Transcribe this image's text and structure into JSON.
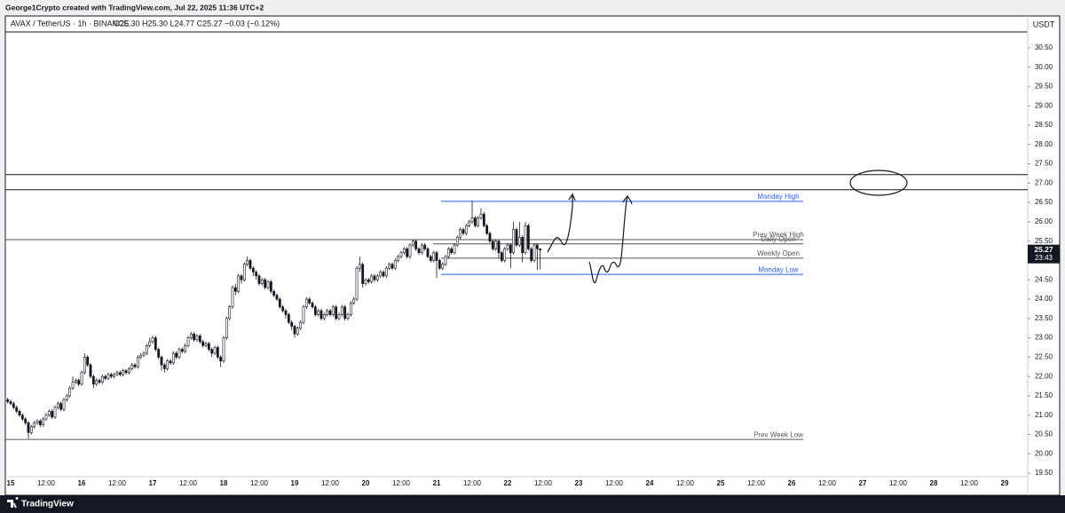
{
  "header": "George1Crypto created with TradingView.com, Jul 22, 2025 11:36 UTC+2",
  "footer": "TradingView",
  "chart_data": {
    "type": "candlestick",
    "symbol": "AVAX / TetherUS · 1h · BINANCE",
    "ohlc_header": "O25.30 H25.30 L24.77 C25.27 −0.03 (−0.12%)",
    "y_axis_label": "USDT",
    "ylim": [
      19.41,
      30.91
    ],
    "yticks": [
      {
        "value": 19.5,
        "label": "19.50"
      },
      {
        "value": 20,
        "label": "20.00"
      },
      {
        "value": 20.5,
        "label": "20.50"
      },
      {
        "value": 21,
        "label": "21.00"
      },
      {
        "value": 21.5,
        "label": "21.50"
      },
      {
        "value": 22,
        "label": "22.00"
      },
      {
        "value": 22.5,
        "label": "22.50"
      },
      {
        "value": 23,
        "label": "23.00"
      },
      {
        "value": 23.5,
        "label": "23.50"
      },
      {
        "value": 24,
        "label": "24.00"
      },
      {
        "value": 24.5,
        "label": "24.50"
      },
      {
        "value": 25,
        "label": "25.00"
      },
      {
        "value": 25.5,
        "label": "25.50"
      },
      {
        "value": 26,
        "label": "26.00"
      },
      {
        "value": 26.5,
        "label": "26.50"
      },
      {
        "value": 27,
        "label": "27.00"
      },
      {
        "value": 27.5,
        "label": "27.50"
      },
      {
        "value": 28,
        "label": "28.00"
      },
      {
        "value": 28.5,
        "label": "28.50"
      },
      {
        "value": 29,
        "label": "29.00"
      },
      {
        "value": 29.5,
        "label": "29.50"
      },
      {
        "value": 30,
        "label": "30.00"
      },
      {
        "value": 30.5,
        "label": "30.50"
      }
    ],
    "xticks": [
      "15",
      "12:00",
      "16",
      "12:00",
      "17",
      "12:00",
      "18",
      "12:00",
      "19",
      "12:00",
      "20",
      "12:00",
      "21",
      "12:00",
      "22",
      "12:00",
      "23",
      "12:00",
      "24",
      "12:00",
      "25",
      "12:00",
      "26",
      "12:00",
      "27",
      "12:00",
      "28",
      "12:00",
      "29"
    ],
    "up_color": "#ffffff",
    "down_color": "#131722",
    "last_price": 25.27,
    "countdown": "23:43",
    "lines": [
      {
        "value": 27.22,
        "color": "#131722"
      },
      {
        "value": 26.83,
        "color": "#131722"
      }
    ],
    "levels": [
      {
        "name": "Monday High",
        "value": 26.53,
        "color": "#2962ff"
      },
      {
        "name": "Prev Week High",
        "value": 25.54,
        "color": "#555555"
      },
      {
        "name": "Daily Open",
        "value": 25.43,
        "color": "#555555"
      },
      {
        "name": "Weekly Open",
        "value": 25.06,
        "color": "#555555"
      },
      {
        "name": "Monday Low",
        "value": 24.64,
        "color": "#2962ff"
      },
      {
        "name": "Prev Week Low",
        "value": 20.37,
        "color": "#555555"
      }
    ],
    "candles": [
      [
        21.4,
        21.45,
        21.3,
        21.35
      ],
      [
        21.35,
        21.4,
        21.25,
        21.3
      ],
      [
        21.3,
        21.35,
        21.15,
        21.2
      ],
      [
        21.2,
        21.25,
        21.05,
        21.1
      ],
      [
        21.1,
        21.15,
        20.95,
        21.0
      ],
      [
        21.0,
        21.05,
        20.85,
        20.9
      ],
      [
        20.9,
        20.95,
        20.75,
        20.8
      ],
      [
        20.8,
        20.85,
        20.4,
        20.55
      ],
      [
        20.55,
        20.75,
        20.5,
        20.7
      ],
      [
        20.7,
        20.85,
        20.65,
        20.8
      ],
      [
        20.8,
        20.9,
        20.75,
        20.85
      ],
      [
        20.85,
        20.9,
        20.7,
        20.75
      ],
      [
        20.75,
        20.95,
        20.7,
        20.9
      ],
      [
        20.9,
        21.05,
        20.85,
        21.0
      ],
      [
        21.0,
        21.15,
        20.95,
        21.1
      ],
      [
        21.1,
        21.15,
        20.9,
        20.95
      ],
      [
        20.95,
        21.25,
        20.9,
        21.2
      ],
      [
        21.2,
        21.35,
        21.15,
        21.3
      ],
      [
        21.3,
        21.35,
        21.1,
        21.15
      ],
      [
        21.15,
        21.45,
        21.1,
        21.4
      ],
      [
        21.4,
        21.55,
        21.35,
        21.5
      ],
      [
        21.5,
        21.75,
        21.45,
        21.7
      ],
      [
        21.7,
        22.0,
        21.65,
        21.85
      ],
      [
        21.85,
        21.95,
        21.8,
        21.9
      ],
      [
        21.9,
        21.95,
        21.75,
        21.8
      ],
      [
        21.8,
        22.15,
        21.75,
        22.1
      ],
      [
        22.1,
        22.6,
        22.05,
        22.5
      ],
      [
        22.5,
        22.55,
        22.25,
        22.3
      ],
      [
        22.3,
        22.35,
        21.95,
        22.0
      ],
      [
        22.0,
        22.05,
        21.7,
        21.8
      ],
      [
        21.8,
        21.95,
        21.75,
        21.9
      ],
      [
        21.9,
        21.95,
        21.8,
        21.85
      ],
      [
        21.85,
        22.05,
        21.8,
        22.0
      ],
      [
        22.0,
        22.05,
        21.9,
        21.95
      ],
      [
        21.95,
        22.1,
        21.9,
        22.05
      ],
      [
        22.05,
        22.1,
        21.95,
        22.0
      ],
      [
        22.0,
        22.1,
        21.95,
        22.05
      ],
      [
        22.05,
        22.15,
        22.0,
        22.1
      ],
      [
        22.1,
        22.15,
        22.0,
        22.05
      ],
      [
        22.05,
        22.2,
        22.0,
        22.15
      ],
      [
        22.15,
        22.2,
        22.05,
        22.1
      ],
      [
        22.1,
        22.25,
        22.05,
        22.2
      ],
      [
        22.2,
        22.35,
        22.15,
        22.3
      ],
      [
        22.3,
        22.35,
        22.2,
        22.25
      ],
      [
        22.25,
        22.55,
        22.2,
        22.5
      ],
      [
        22.5,
        22.6,
        22.45,
        22.55
      ],
      [
        22.55,
        22.65,
        22.5,
        22.6
      ],
      [
        22.6,
        22.85,
        22.55,
        22.8
      ],
      [
        22.8,
        23.0,
        22.75,
        22.9
      ],
      [
        22.9,
        23.05,
        22.85,
        23.0
      ],
      [
        23.0,
        23.05,
        22.65,
        22.7
      ],
      [
        22.7,
        22.75,
        22.45,
        22.5
      ],
      [
        22.5,
        22.55,
        22.15,
        22.3
      ],
      [
        22.3,
        22.35,
        22.1,
        22.2
      ],
      [
        22.2,
        22.45,
        22.15,
        22.4
      ],
      [
        22.4,
        22.45,
        22.3,
        22.35
      ],
      [
        22.35,
        22.65,
        22.3,
        22.6
      ],
      [
        22.6,
        22.65,
        22.45,
        22.5
      ],
      [
        22.5,
        22.75,
        22.45,
        22.7
      ],
      [
        22.7,
        22.75,
        22.6,
        22.65
      ],
      [
        22.65,
        22.85,
        22.6,
        22.8
      ],
      [
        22.8,
        23.05,
        22.75,
        23.0
      ],
      [
        23.0,
        23.15,
        22.95,
        23.1
      ],
      [
        23.1,
        23.15,
        22.9,
        22.95
      ],
      [
        22.95,
        23.1,
        22.9,
        23.05
      ],
      [
        23.05,
        23.1,
        22.85,
        22.9
      ],
      [
        22.9,
        22.95,
        22.75,
        22.8
      ],
      [
        22.8,
        22.9,
        22.75,
        22.85
      ],
      [
        22.85,
        22.9,
        22.65,
        22.7
      ],
      [
        22.7,
        22.75,
        22.5,
        22.6
      ],
      [
        22.6,
        22.8,
        22.55,
        22.75
      ],
      [
        22.75,
        22.8,
        22.45,
        22.5
      ],
      [
        22.5,
        22.55,
        22.25,
        22.4
      ],
      [
        22.4,
        23.05,
        22.35,
        23.0
      ],
      [
        23.0,
        23.55,
        22.95,
        23.5
      ],
      [
        23.5,
        23.85,
        23.45,
        23.8
      ],
      [
        23.8,
        24.35,
        23.75,
        24.3
      ],
      [
        24.3,
        24.4,
        24.1,
        24.2
      ],
      [
        24.2,
        24.65,
        24.15,
        24.6
      ],
      [
        24.6,
        24.65,
        24.4,
        24.5
      ],
      [
        24.5,
        24.95,
        24.45,
        24.9
      ],
      [
        24.9,
        25.1,
        24.85,
        25.0
      ],
      [
        25.0,
        25.05,
        24.75,
        24.8
      ],
      [
        24.8,
        24.85,
        24.6,
        24.7
      ],
      [
        24.7,
        24.75,
        24.5,
        24.6
      ],
      [
        24.6,
        24.65,
        24.35,
        24.4
      ],
      [
        24.4,
        24.55,
        24.35,
        24.5
      ],
      [
        24.5,
        24.55,
        24.25,
        24.3
      ],
      [
        24.3,
        24.5,
        24.25,
        24.45
      ],
      [
        24.45,
        24.5,
        24.15,
        24.2
      ],
      [
        24.2,
        24.25,
        24.05,
        24.1
      ],
      [
        24.1,
        24.15,
        23.95,
        24.0
      ],
      [
        24.0,
        24.05,
        23.75,
        23.8
      ],
      [
        23.8,
        23.85,
        23.65,
        23.7
      ],
      [
        23.7,
        23.75,
        23.5,
        23.6
      ],
      [
        23.6,
        23.65,
        23.35,
        23.4
      ],
      [
        23.4,
        23.45,
        23.2,
        23.3
      ],
      [
        23.3,
        23.35,
        23.0,
        23.1
      ],
      [
        23.1,
        23.3,
        23.05,
        23.25
      ],
      [
        23.25,
        23.45,
        23.2,
        23.4
      ],
      [
        23.4,
        23.85,
        23.35,
        23.8
      ],
      [
        23.8,
        24.05,
        23.75,
        24.0
      ],
      [
        24.0,
        24.05,
        23.85,
        23.9
      ],
      [
        23.9,
        23.95,
        23.75,
        23.8
      ],
      [
        23.8,
        23.85,
        23.55,
        23.6
      ],
      [
        23.6,
        23.75,
        23.55,
        23.7
      ],
      [
        23.7,
        23.75,
        23.45,
        23.5
      ],
      [
        23.5,
        23.65,
        23.45,
        23.6
      ],
      [
        23.6,
        23.75,
        23.55,
        23.7
      ],
      [
        23.7,
        23.75,
        23.55,
        23.6
      ],
      [
        23.6,
        23.85,
        23.55,
        23.8
      ],
      [
        23.8,
        23.85,
        23.45,
        23.5
      ],
      [
        23.5,
        23.65,
        23.45,
        23.6
      ],
      [
        23.6,
        23.85,
        23.55,
        23.8
      ],
      [
        23.8,
        23.85,
        23.45,
        23.5
      ],
      [
        23.5,
        23.65,
        23.45,
        23.6
      ],
      [
        23.6,
        23.95,
        23.55,
        23.9
      ],
      [
        23.9,
        24.05,
        23.85,
        24.0
      ],
      [
        24.0,
        24.85,
        23.95,
        24.8
      ],
      [
        24.8,
        25.1,
        24.7,
        24.9
      ],
      [
        24.9,
        24.95,
        24.3,
        24.4
      ],
      [
        24.4,
        24.55,
        24.35,
        24.5
      ],
      [
        24.5,
        24.55,
        24.4,
        24.45
      ],
      [
        24.45,
        24.65,
        24.4,
        24.6
      ],
      [
        24.6,
        24.65,
        24.45,
        24.5
      ],
      [
        24.5,
        24.65,
        24.45,
        24.6
      ],
      [
        24.6,
        24.75,
        24.55,
        24.7
      ],
      [
        24.7,
        24.75,
        24.55,
        24.6
      ],
      [
        24.6,
        24.85,
        24.55,
        24.8
      ],
      [
        24.8,
        24.95,
        24.75,
        24.9
      ],
      [
        24.9,
        24.95,
        24.75,
        24.8
      ],
      [
        24.8,
        25.05,
        24.75,
        25.0
      ],
      [
        25.0,
        25.15,
        24.95,
        25.1
      ],
      [
        25.1,
        25.25,
        25.05,
        25.2
      ],
      [
        25.2,
        25.35,
        25.15,
        25.3
      ],
      [
        25.3,
        25.35,
        25.05,
        25.1
      ],
      [
        25.1,
        25.45,
        25.05,
        25.4
      ],
      [
        25.4,
        25.55,
        25.35,
        25.5
      ],
      [
        25.5,
        25.55,
        25.25,
        25.3
      ],
      [
        25.3,
        25.35,
        25.15,
        25.2
      ],
      [
        25.2,
        25.45,
        25.15,
        25.4
      ],
      [
        25.4,
        25.45,
        25.25,
        25.3
      ],
      [
        25.3,
        25.35,
        25.05,
        25.1
      ],
      [
        25.1,
        25.15,
        24.95,
        25.0
      ],
      [
        25.0,
        25.25,
        24.95,
        25.2
      ],
      [
        25.2,
        25.25,
        24.55,
        25.0
      ],
      [
        25.0,
        25.05,
        24.75,
        24.8
      ],
      [
        24.8,
        24.95,
        24.75,
        24.9
      ],
      [
        24.9,
        25.15,
        24.85,
        25.1
      ],
      [
        25.1,
        25.35,
        25.05,
        25.3
      ],
      [
        25.3,
        25.35,
        25.15,
        25.2
      ],
      [
        25.2,
        25.45,
        25.15,
        25.4
      ],
      [
        25.4,
        25.65,
        25.35,
        25.6
      ],
      [
        25.6,
        25.85,
        25.55,
        25.8
      ],
      [
        25.8,
        25.85,
        25.65,
        25.7
      ],
      [
        25.7,
        25.95,
        25.65,
        25.9
      ],
      [
        25.9,
        26.05,
        25.85,
        26.0
      ],
      [
        26.0,
        26.55,
        25.95,
        26.1
      ],
      [
        26.1,
        26.15,
        25.85,
        25.9
      ],
      [
        25.9,
        26.15,
        25.85,
        26.1
      ],
      [
        26.1,
        26.35,
        26.05,
        26.2
      ],
      [
        26.2,
        26.25,
        25.85,
        25.9
      ],
      [
        25.9,
        25.95,
        25.65,
        25.7
      ],
      [
        25.7,
        25.75,
        25.45,
        25.5
      ],
      [
        25.5,
        25.55,
        25.25,
        25.3
      ],
      [
        25.3,
        25.55,
        25.25,
        25.5
      ],
      [
        25.5,
        25.55,
        25.05,
        25.2
      ],
      [
        25.2,
        25.25,
        24.95,
        25.0
      ],
      [
        25.0,
        25.35,
        24.95,
        25.3
      ],
      [
        25.3,
        25.45,
        25.25,
        25.4
      ],
      [
        25.4,
        25.45,
        24.8,
        25.2
      ],
      [
        25.2,
        26.0,
        25.15,
        25.8
      ],
      [
        25.8,
        25.85,
        25.35,
        25.4
      ],
      [
        25.4,
        26.0,
        25.35,
        25.6
      ],
      [
        25.6,
        25.65,
        24.95,
        25.2
      ],
      [
        25.2,
        26.0,
        25.15,
        25.9
      ],
      [
        25.9,
        25.95,
        25.25,
        25.3
      ],
      [
        25.3,
        25.35,
        24.95,
        25.0
      ],
      [
        25.0,
        25.45,
        24.95,
        25.4
      ],
      [
        25.4,
        25.45,
        24.75,
        25.3
      ],
      [
        25.3,
        25.3,
        24.77,
        25.27
      ]
    ]
  }
}
